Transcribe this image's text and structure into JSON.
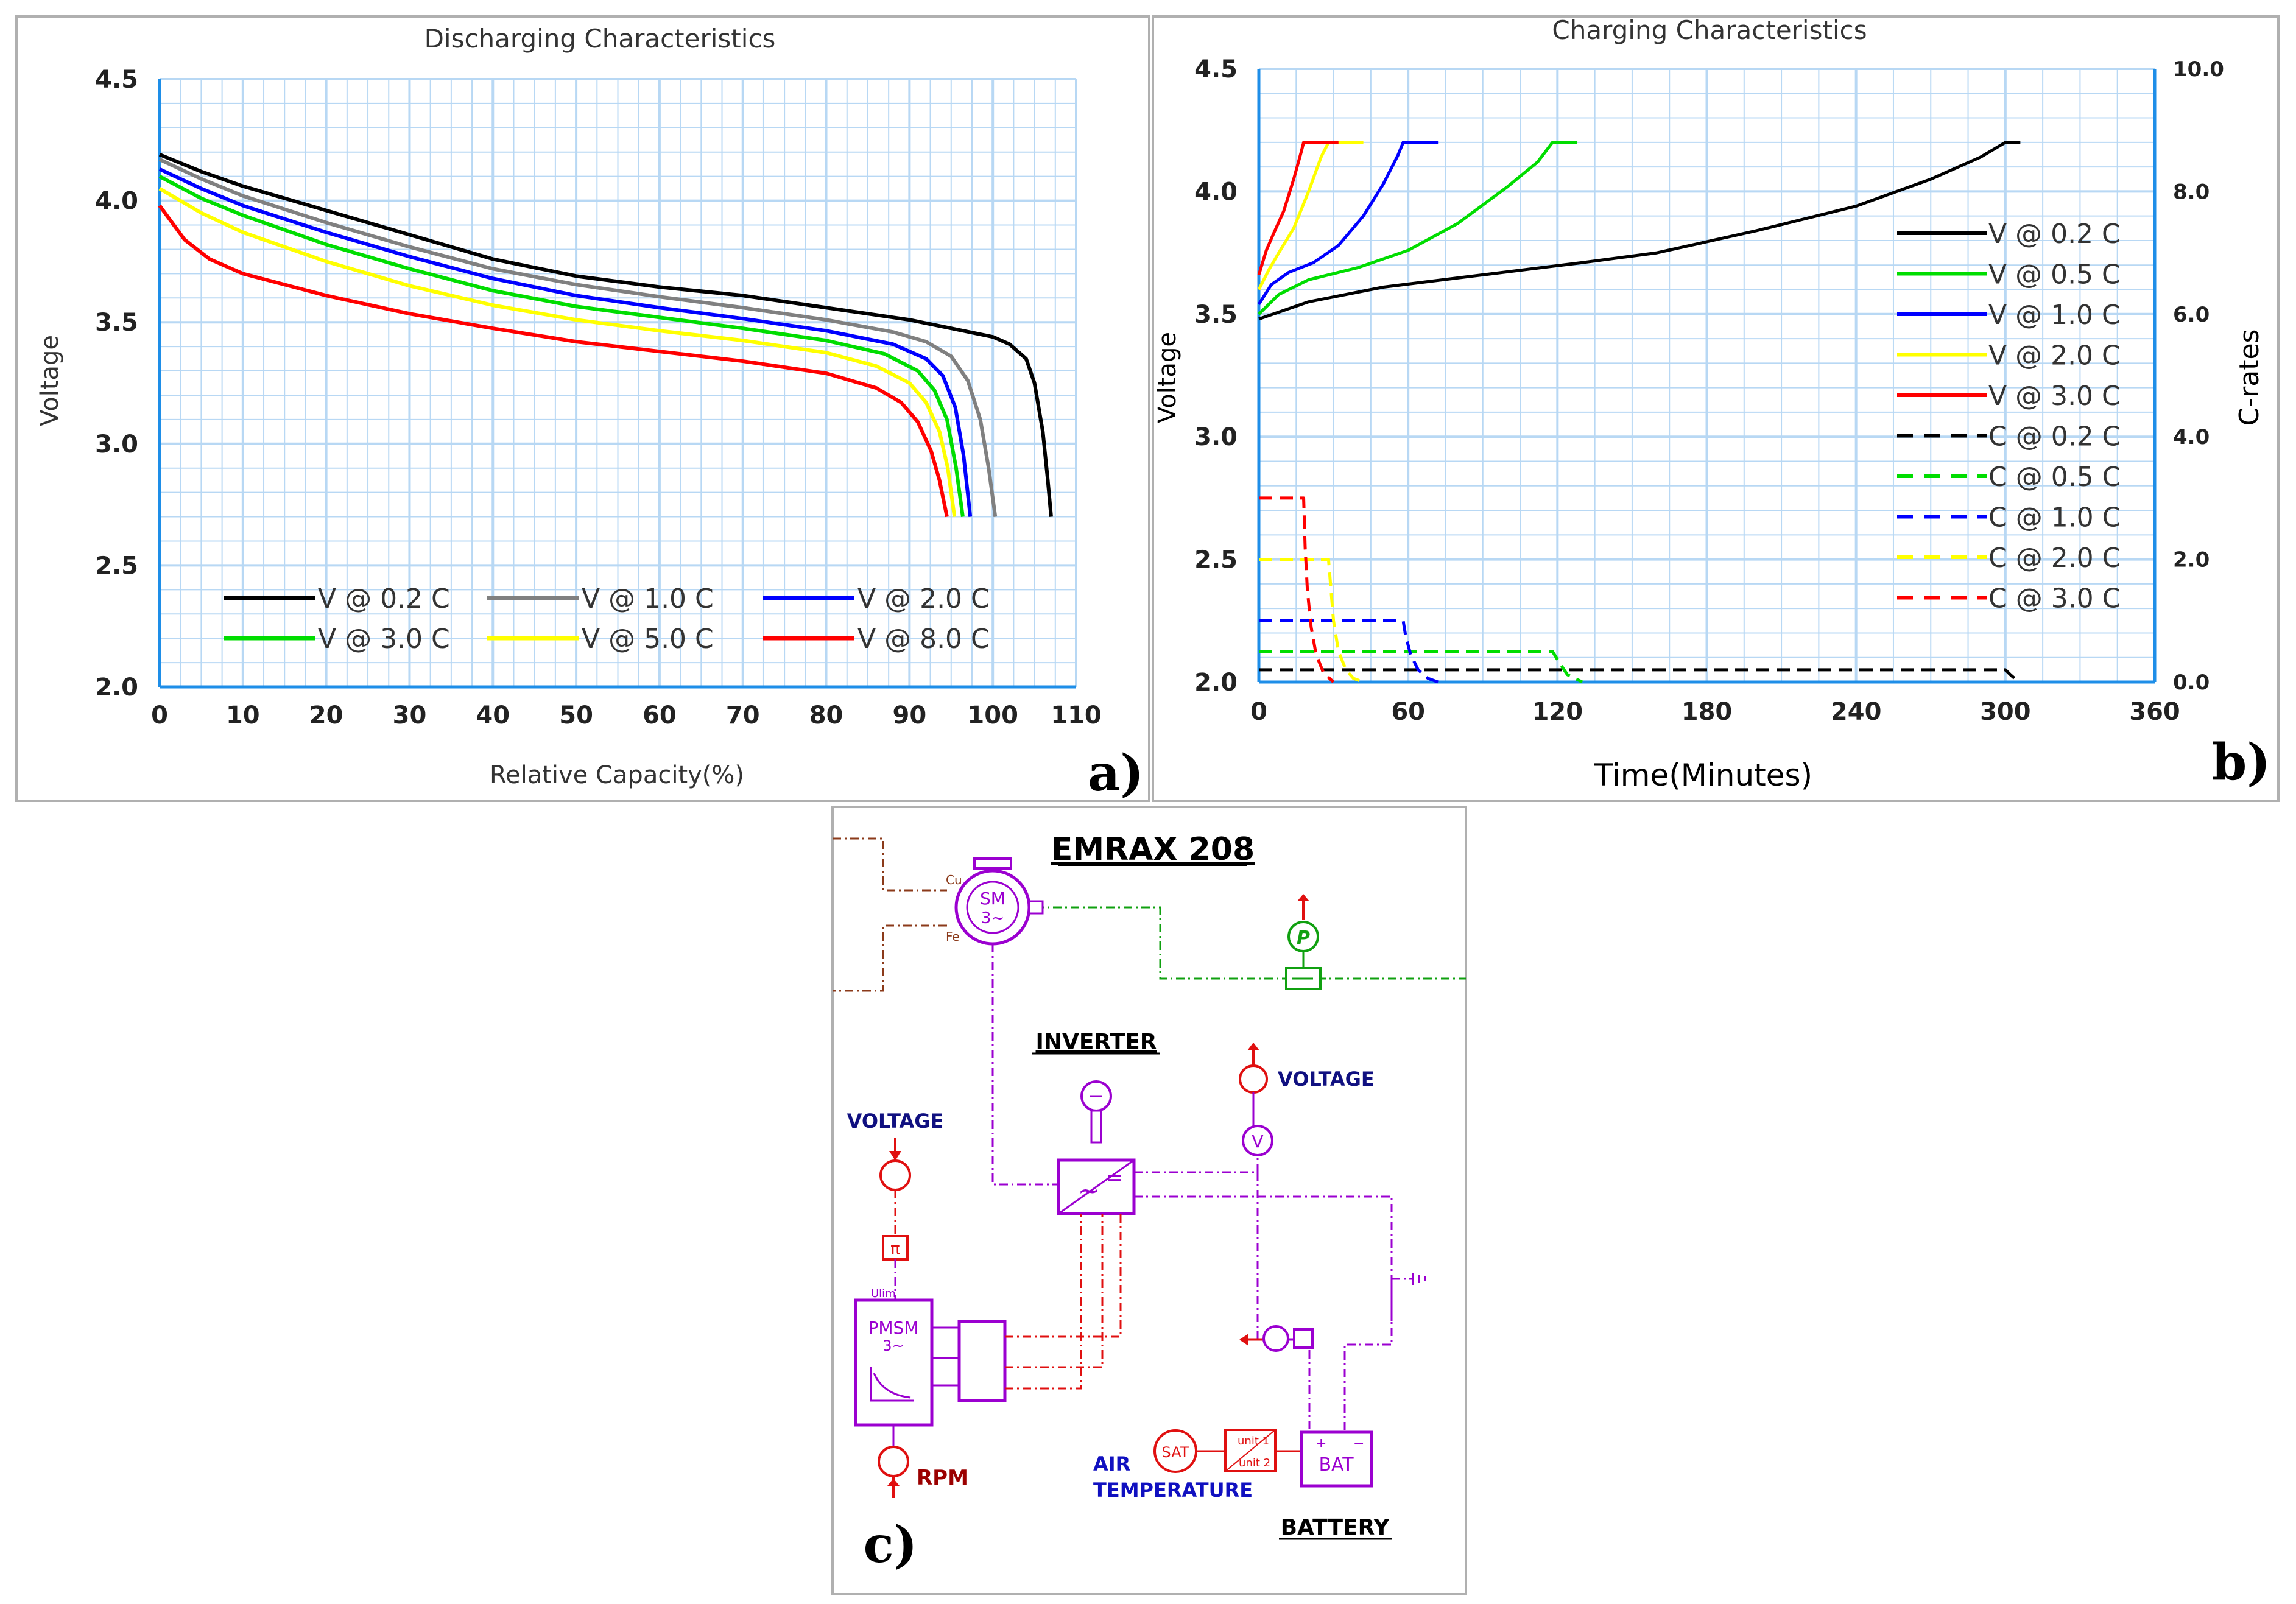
{
  "colors": {
    "grid": "#b8d8f4",
    "frame": "#b0b0b0",
    "schematic": "#9b00d0",
    "schematic_red": "#e01010",
    "schematic_green": "#10a010",
    "schematic_blue": "#101080",
    "schematic_brown": "#8b3a1a"
  },
  "chart_data": [
    {
      "panel": "a)",
      "type": "line",
      "title": "Discharging Characteristics",
      "xlabel": "Relative Capacity(%)",
      "ylabel": "Voltage",
      "xlim": [
        0,
        110
      ],
      "ylim": [
        2.0,
        4.5
      ],
      "xticks": [
        "0",
        "10",
        "20",
        "30",
        "40",
        "50",
        "60",
        "70",
        "80",
        "90",
        "100",
        "110"
      ],
      "yticks": [
        "2.0",
        "2.5",
        "3.0",
        "3.5",
        "4.0",
        "4.5"
      ],
      "legend_position": "bottom-center",
      "series": [
        {
          "name": "V @ 0.2 C",
          "color": "#000000",
          "points": [
            [
              0,
              4.19
            ],
            [
              5,
              4.12
            ],
            [
              10,
              4.06
            ],
            [
              20,
              3.96
            ],
            [
              30,
              3.86
            ],
            [
              40,
              3.76
            ],
            [
              50,
              3.69
            ],
            [
              60,
              3.645
            ],
            [
              70,
              3.61
            ],
            [
              80,
              3.56
            ],
            [
              90,
              3.51
            ],
            [
              95,
              3.475
            ],
            [
              100,
              3.44
            ],
            [
              102,
              3.41
            ],
            [
              104,
              3.35
            ],
            [
              105,
              3.25
            ],
            [
              106,
              3.05
            ],
            [
              106.6,
              2.85
            ],
            [
              107,
              2.7
            ]
          ]
        },
        {
          "name": "V @ 1.0 C",
          "color": "#808080",
          "points": [
            [
              0,
              4.17
            ],
            [
              5,
              4.09
            ],
            [
              10,
              4.02
            ],
            [
              20,
              3.91
            ],
            [
              30,
              3.81
            ],
            [
              40,
              3.72
            ],
            [
              50,
              3.655
            ],
            [
              60,
              3.605
            ],
            [
              70,
              3.56
            ],
            [
              80,
              3.51
            ],
            [
              88,
              3.46
            ],
            [
              92,
              3.42
            ],
            [
              95,
              3.36
            ],
            [
              97,
              3.26
            ],
            [
              98.5,
              3.1
            ],
            [
              99.5,
              2.9
            ],
            [
              100.3,
              2.7
            ]
          ]
        },
        {
          "name": "V @ 2.0 C",
          "color": "#0000ff",
          "points": [
            [
              0,
              4.13
            ],
            [
              5,
              4.05
            ],
            [
              10,
              3.98
            ],
            [
              20,
              3.87
            ],
            [
              30,
              3.77
            ],
            [
              40,
              3.68
            ],
            [
              50,
              3.61
            ],
            [
              60,
              3.56
            ],
            [
              70,
              3.515
            ],
            [
              80,
              3.465
            ],
            [
              88,
              3.41
            ],
            [
              92,
              3.35
            ],
            [
              94,
              3.28
            ],
            [
              95.5,
              3.15
            ],
            [
              96.5,
              2.95
            ],
            [
              97.3,
              2.7
            ]
          ]
        },
        {
          "name": "V @ 3.0 C",
          "color": "#00dd00",
          "points": [
            [
              0,
              4.1
            ],
            [
              5,
              4.01
            ],
            [
              10,
              3.94
            ],
            [
              20,
              3.82
            ],
            [
              30,
              3.72
            ],
            [
              40,
              3.63
            ],
            [
              50,
              3.565
            ],
            [
              60,
              3.52
            ],
            [
              70,
              3.475
            ],
            [
              80,
              3.425
            ],
            [
              87,
              3.37
            ],
            [
              91,
              3.3
            ],
            [
              93,
              3.22
            ],
            [
              94.5,
              3.1
            ],
            [
              95.6,
              2.9
            ],
            [
              96.4,
              2.7
            ]
          ]
        },
        {
          "name": "V @ 5.0 C",
          "color": "#ffff00",
          "points": [
            [
              0,
              4.05
            ],
            [
              5,
              3.95
            ],
            [
              10,
              3.87
            ],
            [
              20,
              3.75
            ],
            [
              30,
              3.65
            ],
            [
              40,
              3.57
            ],
            [
              50,
              3.51
            ],
            [
              60,
              3.465
            ],
            [
              70,
              3.425
            ],
            [
              80,
              3.375
            ],
            [
              86,
              3.32
            ],
            [
              90,
              3.25
            ],
            [
              92,
              3.17
            ],
            [
              93.6,
              3.05
            ],
            [
              94.6,
              2.9
            ],
            [
              95.4,
              2.7
            ]
          ]
        },
        {
          "name": "V @ 8.0 C",
          "color": "#ff0000",
          "points": [
            [
              0,
              3.98
            ],
            [
              3,
              3.84
            ],
            [
              6,
              3.76
            ],
            [
              10,
              3.7
            ],
            [
              20,
              3.61
            ],
            [
              30,
              3.535
            ],
            [
              40,
              3.475
            ],
            [
              50,
              3.42
            ],
            [
              60,
              3.38
            ],
            [
              70,
              3.34
            ],
            [
              80,
              3.29
            ],
            [
              86,
              3.23
            ],
            [
              89,
              3.17
            ],
            [
              91,
              3.09
            ],
            [
              92.6,
              2.97
            ],
            [
              93.6,
              2.85
            ],
            [
              94.5,
              2.7
            ]
          ]
        }
      ]
    },
    {
      "panel": "b)",
      "type": "line",
      "title": "Charging Characteristics",
      "xlabel": "Time(Minutes)",
      "ylabel": "Voltage",
      "y2label": "C-rates",
      "xlim": [
        0,
        360
      ],
      "ylim": [
        2.0,
        4.5
      ],
      "y2lim": [
        0.0,
        10.0
      ],
      "xticks": [
        "0",
        "60",
        "120",
        "180",
        "240",
        "300",
        "360"
      ],
      "yticks": [
        "2.0",
        "2.5",
        "3.0",
        "3.5",
        "4.0",
        "4.5"
      ],
      "y2ticks": [
        "0.0",
        "2.0",
        "4.0",
        "6.0",
        "8.0",
        "10.0"
      ],
      "legend_position": "right",
      "series": [
        {
          "name": "V @ 0.2 C",
          "axis": "left",
          "dash": false,
          "color": "#000000",
          "points": [
            [
              0,
              3.48
            ],
            [
              20,
              3.55
            ],
            [
              50,
              3.61
            ],
            [
              90,
              3.66
            ],
            [
              130,
              3.71
            ],
            [
              160,
              3.75
            ],
            [
              200,
              3.84
            ],
            [
              240,
              3.94
            ],
            [
              270,
              4.05
            ],
            [
              290,
              4.14
            ],
            [
              300,
              4.2
            ],
            [
              306,
              4.2
            ]
          ]
        },
        {
          "name": "V @ 0.5 C",
          "axis": "left",
          "dash": false,
          "color": "#00dd00",
          "points": [
            [
              0,
              3.5
            ],
            [
              8,
              3.58
            ],
            [
              20,
              3.64
            ],
            [
              40,
              3.69
            ],
            [
              60,
              3.76
            ],
            [
              80,
              3.87
            ],
            [
              100,
              4.02
            ],
            [
              112,
              4.12
            ],
            [
              118,
              4.2
            ],
            [
              128,
              4.2
            ]
          ]
        },
        {
          "name": "V @ 1.0 C",
          "axis": "left",
          "dash": false,
          "color": "#0000ff",
          "points": [
            [
              0,
              3.54
            ],
            [
              5,
              3.62
            ],
            [
              12,
              3.67
            ],
            [
              22,
              3.71
            ],
            [
              32,
              3.78
            ],
            [
              42,
              3.9
            ],
            [
              50,
              4.03
            ],
            [
              56,
              4.15
            ],
            [
              58,
              4.2
            ],
            [
              72,
              4.2
            ]
          ]
        },
        {
          "name": "V @ 2.0 C",
          "axis": "left",
          "dash": false,
          "color": "#ffff00",
          "points": [
            [
              0,
              3.6
            ],
            [
              4,
              3.68
            ],
            [
              8,
              3.75
            ],
            [
              14,
              3.85
            ],
            [
              20,
              4.0
            ],
            [
              25,
              4.14
            ],
            [
              28,
              4.2
            ],
            [
              42,
              4.2
            ]
          ]
        },
        {
          "name": "V @ 3.0 C",
          "axis": "left",
          "dash": false,
          "color": "#ff0000",
          "points": [
            [
              0,
              3.66
            ],
            [
              3,
              3.76
            ],
            [
              6,
              3.83
            ],
            [
              10,
              3.92
            ],
            [
              14,
              4.05
            ],
            [
              17,
              4.16
            ],
            [
              18,
              4.2
            ],
            [
              32,
              4.2
            ]
          ]
        },
        {
          "name": "C @ 0.2 C",
          "axis": "right",
          "dash": true,
          "color": "#000000",
          "points": [
            [
              0,
              0.2
            ],
            [
              300,
              0.2
            ],
            [
              302,
              0.12
            ],
            [
              304,
              0.05
            ],
            [
              306,
              0.0
            ]
          ]
        },
        {
          "name": "C @ 0.5 C",
          "axis": "right",
          "dash": true,
          "color": "#00dd00",
          "points": [
            [
              0,
              0.5
            ],
            [
              118,
              0.5
            ],
            [
              121,
              0.3
            ],
            [
              124,
              0.12
            ],
            [
              130,
              0.0
            ]
          ]
        },
        {
          "name": "C @ 1.0 C",
          "axis": "right",
          "dash": true,
          "color": "#0000ff",
          "points": [
            [
              0,
              1.0
            ],
            [
              58,
              1.0
            ],
            [
              59,
              0.75
            ],
            [
              61,
              0.45
            ],
            [
              64,
              0.2
            ],
            [
              68,
              0.06
            ],
            [
              72,
              0.0
            ]
          ]
        },
        {
          "name": "C @ 2.0 C",
          "axis": "right",
          "dash": true,
          "color": "#ffff00",
          "points": [
            [
              0,
              2.0
            ],
            [
              28,
              2.0
            ],
            [
              29,
              1.5
            ],
            [
              30,
              1.0
            ],
            [
              32,
              0.5
            ],
            [
              35,
              0.2
            ],
            [
              38,
              0.06
            ],
            [
              42,
              0.0
            ]
          ]
        },
        {
          "name": "C @ 3.0 C",
          "axis": "right",
          "dash": true,
          "color": "#ff0000",
          "points": [
            [
              0,
              3.0
            ],
            [
              18,
              3.0
            ],
            [
              18.6,
              2.2
            ],
            [
              19.5,
              1.5
            ],
            [
              21,
              0.9
            ],
            [
              23,
              0.45
            ],
            [
              26,
              0.15
            ],
            [
              30,
              0.0
            ]
          ]
        }
      ]
    }
  ],
  "schematic": {
    "panel": "c)",
    "title": "EMRAX 208",
    "inverter_label": "INVERTER",
    "battery_label": "BATTERY",
    "voltage_label_left": "VOLTAGE",
    "voltage_label_right": "VOLTAGE",
    "rpm_label": "RPM",
    "air_temp_line1": "AIR",
    "air_temp_line2": "TEMPERATURE",
    "motor_text1": "SM",
    "motor_text2": "3~",
    "motor_cu": "Cu",
    "motor_fe": "Fe",
    "pmsm_text1": "PMSM",
    "pmsm_text2": "3~",
    "pmsm_ulim": "Ulim",
    "pi_text": "π",
    "power_sensor_text": "P",
    "volt_sensor_text": "V",
    "sat_text": "SAT",
    "unit1_text": "unit 1",
    "unit2_text": "unit 2",
    "bat_text": "BAT"
  }
}
